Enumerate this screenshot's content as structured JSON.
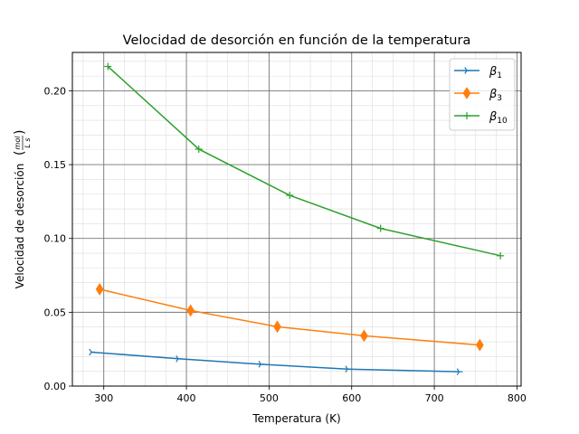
{
  "chart_data": {
    "type": "line",
    "title": "Velocidad de desorción en función de la temperatura",
    "xlabel": "Temperatura (K)",
    "ylabel": "Velocidad de desorción",
    "ylabel_units": {
      "numerator": "mol",
      "denominator": "L s"
    },
    "xlim": [
      262,
      805
    ],
    "ylim": [
      0,
      0.226
    ],
    "xticks": [
      300,
      400,
      500,
      600,
      700,
      800
    ],
    "yticks": [
      0.0,
      0.05,
      0.1,
      0.15,
      0.2
    ],
    "xtick_labels": [
      "300",
      "400",
      "500",
      "600",
      "700",
      "800"
    ],
    "ytick_labels": [
      "0.00",
      "0.05",
      "0.10",
      "0.15",
      "0.20"
    ],
    "grid": {
      "major": true,
      "minor": true
    },
    "legend_position": "top-right",
    "series": [
      {
        "name_base": "β",
        "name_sub": "1",
        "color": "#1f77b4",
        "marker": "tri_right",
        "x": [
          285,
          390,
          490,
          595,
          730
        ],
        "y": [
          0.023,
          0.0185,
          0.0148,
          0.0115,
          0.0097
        ]
      },
      {
        "name_base": "β",
        "name_sub": "3",
        "color": "#ff7f0e",
        "marker": "thin_diamond",
        "x": [
          295,
          405,
          510,
          615,
          755
        ],
        "y": [
          0.0656,
          0.0512,
          0.0402,
          0.0341,
          0.0278
        ]
      },
      {
        "name_base": "β",
        "name_sub": "10",
        "color": "#2ca02c",
        "marker": "plus",
        "x": [
          305,
          415,
          525,
          635,
          780
        ],
        "y": [
          0.2165,
          0.1605,
          0.1292,
          0.1068,
          0.0883
        ]
      }
    ]
  }
}
